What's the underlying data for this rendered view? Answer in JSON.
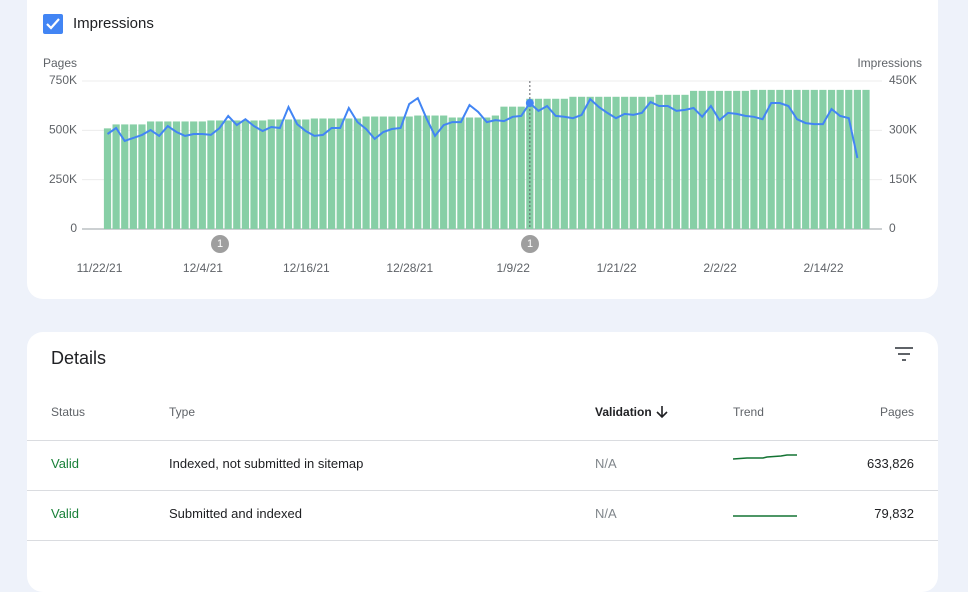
{
  "header": {
    "checkbox_label": "Impressions"
  },
  "chart_data": {
    "type": "bar",
    "categories": [
      "11/22/21",
      null,
      null,
      null,
      null,
      null,
      null,
      null,
      null,
      null,
      null,
      null,
      "12/4/21",
      null,
      null,
      null,
      null,
      null,
      null,
      null,
      null,
      null,
      null,
      null,
      "12/16/21",
      null,
      null,
      null,
      null,
      null,
      null,
      null,
      null,
      null,
      null,
      null,
      "12/28/21",
      null,
      null,
      null,
      null,
      null,
      null,
      null,
      null,
      null,
      null,
      null,
      "1/9/22",
      null,
      null,
      null,
      null,
      null,
      null,
      null,
      null,
      null,
      null,
      null,
      "1/21/22",
      null,
      null,
      null,
      null,
      null,
      null,
      null,
      null,
      null,
      null,
      null,
      "2/2/22",
      null,
      null,
      null,
      null,
      null,
      null,
      null,
      null,
      null,
      null,
      null,
      "2/14/22",
      null,
      null,
      null,
      null
    ],
    "series": [
      {
        "name": "Pages",
        "type": "bar",
        "color": "#87cfa6",
        "values": [
          510000,
          530000,
          530000,
          530000,
          530000,
          545000,
          545000,
          545000,
          545000,
          545000,
          545000,
          545000,
          550000,
          550000,
          550000,
          550000,
          550000,
          550000,
          550000,
          555000,
          555000,
          555000,
          555000,
          555000,
          560000,
          560000,
          560000,
          560000,
          560000,
          560000,
          570000,
          570000,
          570000,
          570000,
          570000,
          570000,
          575000,
          575000,
          575000,
          575000,
          565000,
          565000,
          565000,
          565000,
          565000,
          575000,
          620000,
          620000,
          620000,
          660000,
          660000,
          660000,
          660000,
          660000,
          670000,
          670000,
          670000,
          670000,
          670000,
          670000,
          670000,
          670000,
          670000,
          670000,
          680000,
          680000,
          680000,
          680000,
          700000,
          700000,
          700000,
          700000,
          700000,
          700000,
          700000,
          705000,
          705000,
          705000,
          705000,
          705000,
          705000,
          705000,
          705000,
          705000,
          705000,
          705000,
          705000,
          705000,
          705000
        ]
      },
      {
        "name": "Impressions",
        "type": "line",
        "axis": "y2",
        "color": "#4285f4",
        "values": [
          289000,
          307000,
          268000,
          277000,
          286000,
          301000,
          283000,
          313000,
          295000,
          283000,
          289000,
          289000,
          286000,
          307000,
          344000,
          316000,
          334000,
          313000,
          298000,
          310000,
          307000,
          371000,
          319000,
          298000,
          283000,
          286000,
          307000,
          307000,
          368000,
          325000,
          304000,
          274000,
          295000,
          304000,
          307000,
          380000,
          398000,
          337000,
          283000,
          316000,
          325000,
          325000,
          377000,
          356000,
          325000,
          331000,
          328000,
          341000,
          344000,
          383000,
          359000,
          374000,
          344000,
          341000,
          337000,
          347000,
          395000,
          371000,
          353000,
          337000,
          350000,
          347000,
          353000,
          386000,
          374000,
          374000,
          359000,
          362000,
          368000,
          341000,
          374000,
          331000,
          353000,
          350000,
          344000,
          341000,
          334000,
          383000,
          383000,
          374000,
          334000,
          322000,
          319000,
          319000,
          365000,
          344000,
          337000,
          216000,
          null
        ]
      }
    ],
    "ylim": [
      0,
      750000
    ],
    "yticks": [
      0,
      {
        "value": 250000,
        "label": "250K"
      },
      {
        "value": 500000,
        "label": "500K"
      },
      {
        "value": 750000,
        "label": "750K"
      }
    ],
    "y2lim": [
      0,
      450000
    ],
    "y2ticks": [
      0,
      {
        "value": 150000,
        "label": "150K"
      },
      {
        "value": 300000,
        "label": "300K"
      },
      {
        "value": 450000,
        "label": "450K"
      }
    ],
    "grid": true,
    "annotations": [
      "1",
      "1"
    ]
  },
  "details": {
    "title": "Details",
    "columns": {
      "status": "Status",
      "type": "Type",
      "validation": "Validation",
      "trend": "Trend",
      "pages": "Pages"
    },
    "rows": [
      {
        "status": "Valid",
        "type": "Indexed, not submitted in sitemap",
        "validation": "N/A",
        "pages": "633,826"
      },
      {
        "status": "Valid",
        "type": "Submitted and indexed",
        "validation": "N/A",
        "pages": "79,832"
      }
    ]
  }
}
